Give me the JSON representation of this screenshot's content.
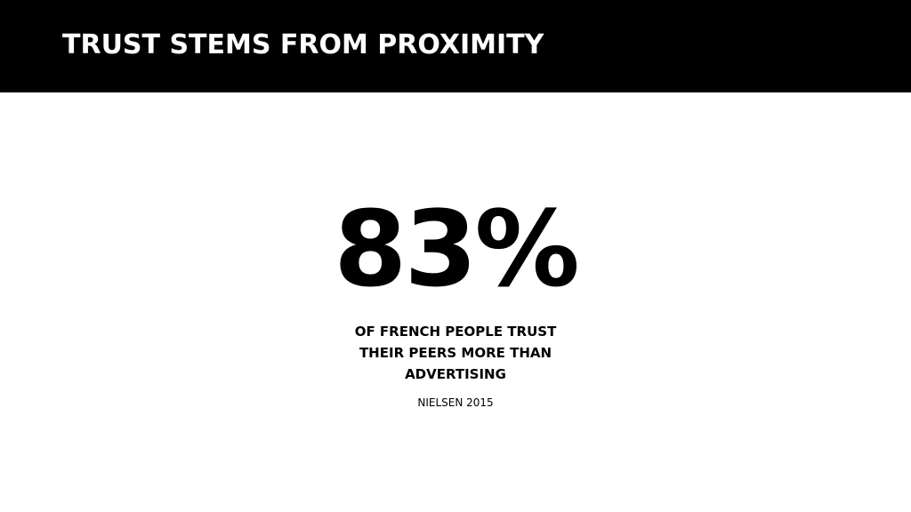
{
  "slide": {
    "title": "TRUST STEMS FROM PROXIMITY",
    "statistic": "83%",
    "caption": "OF FRENCH PEOPLE TRUST THEIR PEERS MORE THAN ADVERTISING",
    "source": "NIELSEN 2015"
  },
  "colors": {
    "header_background": "#000000",
    "header_text": "#ffffff",
    "body_background": "#ffffff",
    "body_text": "#000000"
  }
}
